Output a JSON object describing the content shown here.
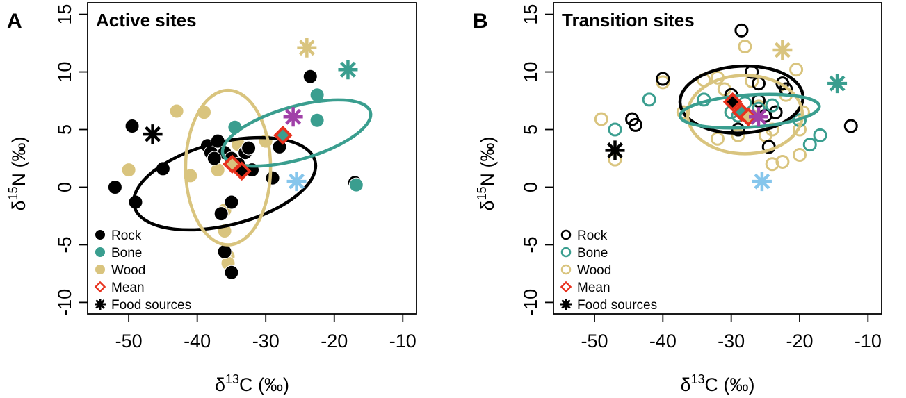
{
  "colors": {
    "rock": "#000000",
    "bone": "#3a9e8f",
    "wood": "#d9c47e",
    "mean_edge": "#e8321e",
    "source_light_blue": "#86c6ec",
    "source_purple": "#a040a8"
  },
  "chart_data": [
    {
      "type": "scatter",
      "panel_letter": "A",
      "title": "Active sites",
      "xlabel_prefix": "δ",
      "xlabel_sup": "13",
      "xlabel_main": "C (‰)",
      "ylabel_prefix": "δ",
      "ylabel_sup": "15",
      "ylabel_main": "N (‰)",
      "xlim": [
        -56,
        -8
      ],
      "ylim": [
        -11,
        16
      ],
      "xticks": [
        -50,
        -40,
        -30,
        -20,
        -10
      ],
      "yticks": [
        -10,
        -5,
        0,
        5,
        10,
        15
      ],
      "filled": true,
      "legend_position": "bottom-left",
      "legend": [
        {
          "label": "Rock",
          "marker": "circle",
          "color": "#000000"
        },
        {
          "label": "Bone",
          "marker": "circle",
          "color": "#3a9e8f"
        },
        {
          "label": "Wood",
          "marker": "circle",
          "color": "#d9c47e"
        },
        {
          "label": "Mean",
          "marker": "diamond",
          "color": "#e8321e"
        },
        {
          "label": "Food sources",
          "marker": "star",
          "color": "#000000"
        }
      ],
      "series": [
        {
          "name": "Wood",
          "color": "#d9c47e",
          "points": [
            [
              -43,
              6.6
            ],
            [
              -39,
              6.5
            ],
            [
              -50,
              1.5
            ],
            [
              -41,
              1
            ],
            [
              -37,
              1.5
            ],
            [
              -34,
              3.7
            ],
            [
              -36,
              -2
            ],
            [
              -36,
              -3.8
            ],
            [
              -35.5,
              -6
            ],
            [
              -35.5,
              -6.6
            ],
            [
              -30,
              4
            ]
          ]
        },
        {
          "name": "Rock",
          "color": "#000000",
          "points": [
            [
              -49.5,
              5.3
            ],
            [
              -52,
              0
            ],
            [
              -49,
              -1.3
            ],
            [
              -45,
              1.6
            ],
            [
              -38.5,
              3.6
            ],
            [
              -38,
              3
            ],
            [
              -37,
              4
            ],
            [
              -36,
              3
            ],
            [
              -37.5,
              2.5
            ],
            [
              -35,
              2.5
            ],
            [
              -33,
              3
            ],
            [
              -32.5,
              3.4
            ],
            [
              -32,
              1.5
            ],
            [
              -34,
              2
            ],
            [
              -35,
              -1.3
            ],
            [
              -36.5,
              -2.3
            ],
            [
              -36,
              -5.6
            ],
            [
              -35,
              -7.4
            ],
            [
              -29,
              0.8
            ],
            [
              -28,
              3.5
            ],
            [
              -23.5,
              9.6
            ],
            [
              -17,
              0.4
            ]
          ]
        },
        {
          "name": "Bone",
          "color": "#3a9e8f",
          "points": [
            [
              -34.5,
              5.2
            ],
            [
              -22.5,
              8
            ],
            [
              -22.5,
              5.8
            ],
            [
              -16.8,
              0.2
            ]
          ]
        }
      ],
      "ellipses": [
        {
          "group": "Rock",
          "color": "#000000",
          "center": [
            -36,
            0.3
          ],
          "rx": 13.6,
          "ry": 3.6,
          "angle": 14
        },
        {
          "group": "Wood",
          "color": "#d9c47e",
          "center": [
            -35.5,
            1.7
          ],
          "rx": 6.2,
          "ry": 6.7,
          "angle": 0
        },
        {
          "group": "Bone",
          "color": "#3a9e8f",
          "center": [
            -25.5,
            4.7
          ],
          "rx": 11.2,
          "ry": 2.3,
          "angle": 16
        }
      ],
      "means": [
        {
          "group": "Wood",
          "point": [
            -34.9,
            2
          ],
          "fill": "#d9c47e"
        },
        {
          "group": "Rock",
          "point": [
            -33.5,
            1.4
          ],
          "fill": "#000000"
        },
        {
          "group": "Bone",
          "point": [
            -27.5,
            4.5
          ],
          "fill": "#3a9e8f"
        }
      ],
      "food_sources": [
        {
          "point": [
            -46.5,
            4.6
          ],
          "color": "#000000"
        },
        {
          "point": [
            -24,
            12.1
          ],
          "color": "#d9c47e"
        },
        {
          "point": [
            -18,
            10.2
          ],
          "color": "#3a9e8f"
        },
        {
          "point": [
            -26,
            6.1
          ],
          "color": "#a040a8"
        },
        {
          "point": [
            -25.5,
            0.5
          ],
          "color": "#86c6ec"
        }
      ]
    },
    {
      "type": "scatter",
      "panel_letter": "B",
      "title": "Transition sites",
      "xlabel_prefix": "δ",
      "xlabel_sup": "13",
      "xlabel_main": "C (‰)",
      "ylabel_prefix": "δ",
      "ylabel_sup": "15",
      "ylabel_main": "N (‰)",
      "xlim": [
        -56,
        -8
      ],
      "ylim": [
        -11,
        16
      ],
      "xticks": [
        -50,
        -40,
        -30,
        -20,
        -10
      ],
      "yticks": [
        -10,
        -5,
        0,
        5,
        10,
        15
      ],
      "filled": false,
      "legend_position": "bottom-left",
      "legend": [
        {
          "label": "Rock",
          "marker": "open-circle",
          "color": "#000000"
        },
        {
          "label": "Bone",
          "marker": "open-circle",
          "color": "#3a9e8f"
        },
        {
          "label": "Wood",
          "marker": "open-circle",
          "color": "#d9c47e"
        },
        {
          "label": "Mean",
          "marker": "diamond",
          "color": "#e8321e"
        },
        {
          "label": "Food sources",
          "marker": "star",
          "color": "#000000"
        }
      ],
      "series": [
        {
          "name": "Wood",
          "color": "#d9c47e",
          "points": [
            [
              -49,
              5.9
            ],
            [
              -47,
              2.4
            ],
            [
              -40,
              9.1
            ],
            [
              -37,
              6.5
            ],
            [
              -34,
              9.3
            ],
            [
              -32,
              9.5
            ],
            [
              -31,
              8.5
            ],
            [
              -30,
              6.5
            ],
            [
              -29,
              4.5
            ],
            [
              -28,
              12.2
            ],
            [
              -27,
              9.2
            ],
            [
              -26,
              7
            ],
            [
              -25,
              4.5
            ],
            [
              -24,
              5
            ],
            [
              -24,
              2
            ],
            [
              -22.5,
              2.2
            ],
            [
              -22,
              8
            ],
            [
              -20.5,
              10.2
            ],
            [
              -20,
              5
            ],
            [
              -20,
              2.8
            ],
            [
              -19.5,
              6.5
            ],
            [
              -32,
              4.2
            ]
          ]
        },
        {
          "name": "Rock",
          "color": "#000000",
          "points": [
            [
              -28.5,
              13.6
            ],
            [
              -40,
              9.4
            ],
            [
              -44.5,
              5.9
            ],
            [
              -44,
              5.4
            ],
            [
              -30,
              8
            ],
            [
              -29,
              5
            ],
            [
              -27,
              10
            ],
            [
              -26,
              9
            ],
            [
              -26,
              7.5
            ],
            [
              -25,
              6.2
            ],
            [
              -24.5,
              3.5
            ],
            [
              -23.5,
              6.5
            ],
            [
              -22.5,
              9
            ],
            [
              -22,
              8.5
            ],
            [
              -12.5,
              5.3
            ]
          ]
        },
        {
          "name": "Bone",
          "color": "#3a9e8f",
          "points": [
            [
              -47,
              5
            ],
            [
              -42,
              7.6
            ],
            [
              -34,
              7.6
            ],
            [
              -30,
              6.5
            ],
            [
              -29,
              6.2
            ],
            [
              -28,
              7.3
            ],
            [
              -26,
              6.8
            ],
            [
              -24,
              7.1
            ],
            [
              -20,
              5.8
            ],
            [
              -18.5,
              3.7
            ],
            [
              -17,
              4.5
            ]
          ]
        }
      ],
      "ellipses": [
        {
          "group": "Rock",
          "color": "#000000",
          "center": [
            -28.5,
            7.6
          ],
          "rx": 9,
          "ry": 2.9,
          "angle": 3
        },
        {
          "group": "Wood",
          "color": "#d9c47e",
          "center": [
            -28,
            6.3
          ],
          "rx": 8.4,
          "ry": 3.4,
          "angle": 0
        },
        {
          "group": "Bone",
          "color": "#3a9e8f",
          "center": [
            -27.3,
            6.6
          ],
          "rx": 10.2,
          "ry": 1.4,
          "angle": 4
        }
      ],
      "means": [
        {
          "group": "Rock",
          "point": [
            -29.8,
            7.4
          ],
          "fill": "#000000"
        },
        {
          "group": "Bone",
          "point": [
            -28.5,
            6.5
          ],
          "fill": "#3a9e8f"
        },
        {
          "group": "Wood",
          "point": [
            -27.5,
            6.1
          ],
          "fill": "#d9c47e"
        }
      ],
      "food_sources": [
        {
          "point": [
            -47,
            3.2
          ],
          "color": "#000000"
        },
        {
          "point": [
            -22.5,
            11.9
          ],
          "color": "#d9c47e"
        },
        {
          "point": [
            -14.5,
            9
          ],
          "color": "#3a9e8f"
        },
        {
          "point": [
            -26,
            6.1
          ],
          "color": "#a040a8"
        },
        {
          "point": [
            -25.5,
            0.5
          ],
          "color": "#86c6ec"
        }
      ]
    }
  ]
}
